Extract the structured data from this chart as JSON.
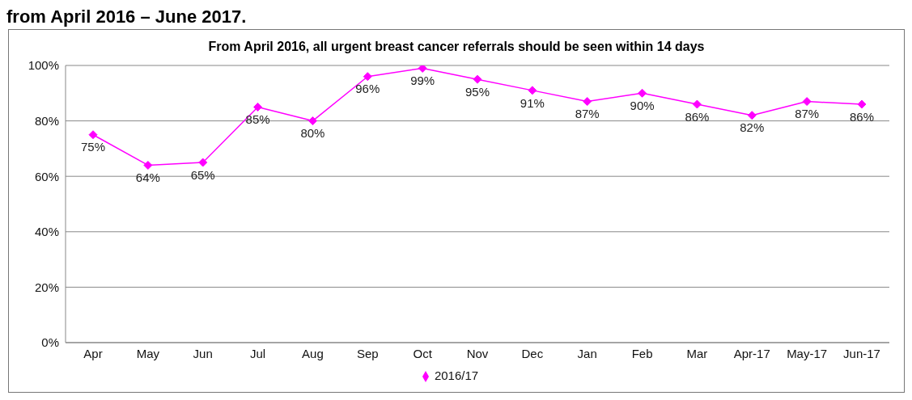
{
  "chart_data": {
    "type": "line",
    "title": "From April 2016, all urgent breast cancer referrals should be seen within 14 days",
    "annotations": [
      "from April 2016 – June 2017."
    ],
    "categories": [
      "Apr",
      "May",
      "Jun",
      "Jul",
      "Aug",
      "Sep",
      "Oct",
      "Nov",
      "Dec",
      "Jan",
      "Feb",
      "Mar",
      "Apr-17",
      "May-17",
      "Jun-17"
    ],
    "series": [
      {
        "name": "2016/17",
        "color": "#ff00ff",
        "values": [
          75,
          64,
          65,
          85,
          80,
          96,
          99,
          95,
          91,
          87,
          90,
          86,
          82,
          87,
          86
        ],
        "value_labels": [
          "75%",
          "64%",
          "65%",
          "85%",
          "80%",
          "96%",
          "99%",
          "95%",
          "91%",
          "87%",
          "90%",
          "86%",
          "82%",
          "87%",
          "86%"
        ]
      }
    ],
    "ylim": [
      0,
      100
    ],
    "yticks": [
      {
        "value": 0,
        "label": "0%"
      },
      {
        "value": 20,
        "label": "20%"
      },
      {
        "value": 40,
        "label": "40%"
      },
      {
        "value": 60,
        "label": "60%"
      },
      {
        "value": 80,
        "label": "80%"
      },
      {
        "value": 100,
        "label": "100%"
      }
    ],
    "grid": "y",
    "legend": "bottom",
    "marker": "diamond",
    "line_style": "solid"
  }
}
